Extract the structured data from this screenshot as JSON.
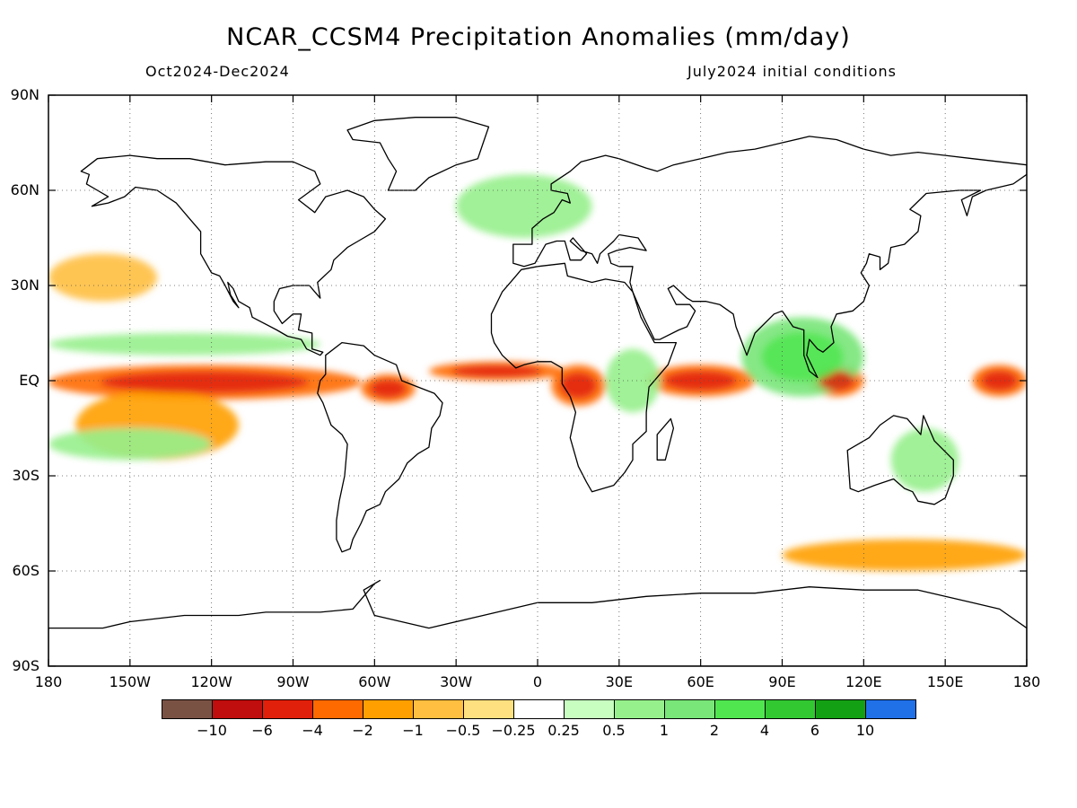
{
  "header": {
    "title": "NCAR_CCSM4 Precipitation Anomalies (mm/day)",
    "period": "Oct2024-Dec2024",
    "init": "July2024 initial conditions"
  },
  "axes": {
    "lat_labels": [
      "90N",
      "60N",
      "30N",
      "EQ",
      "30S",
      "60S",
      "90S"
    ],
    "lon_labels": [
      "180",
      "150W",
      "120W",
      "90W",
      "60W",
      "30W",
      "0",
      "30E",
      "60E",
      "90E",
      "120E",
      "150E",
      "180"
    ]
  },
  "legend": {
    "colors": [
      "#7a5244",
      "#c00d0d",
      "#e0200a",
      "#ff6a00",
      "#ffa000",
      "#ffbf40",
      "#ffe080",
      "#ffffff",
      "#c8ffc0",
      "#96f08c",
      "#78e678",
      "#50e650",
      "#32c832",
      "#14a014",
      "#2070e8"
    ],
    "labels": [
      "−10",
      "−6",
      "−4",
      "−2",
      "−1",
      "−0.5",
      "−0.25",
      "0.25",
      "0.5",
      "1",
      "2",
      "4",
      "6",
      "10"
    ]
  },
  "map_data": {
    "type": "filled-contour",
    "variable": "precipitation anomaly",
    "units": "mm/day",
    "lon_range": [
      -180,
      180
    ],
    "lat_range": [
      -90,
      90
    ],
    "gridlines": true,
    "features": [
      {
        "desc": "equatorial central Pacific",
        "lon": [
          -180,
          -65
        ],
        "lat": [
          -6,
          5
        ],
        "anomaly": -3
      },
      {
        "desc": "southeastern Pacific diagonal band",
        "lon": [
          -170,
          -110
        ],
        "lat": [
          -25,
          -3
        ],
        "anomaly": -1
      },
      {
        "desc": "equatorial western Pacific",
        "lon": [
          160,
          180
        ],
        "lat": [
          -5,
          5
        ],
        "anomaly": -2
      },
      {
        "desc": "northern South America",
        "lon": [
          -65,
          -45
        ],
        "lat": [
          -7,
          2
        ],
        "anomaly": -2
      },
      {
        "desc": "equatorial Atlantic",
        "lon": [
          -40,
          10
        ],
        "lat": [
          0,
          6
        ],
        "anomaly": -2
      },
      {
        "desc": "central equatorial Africa",
        "lon": [
          5,
          25
        ],
        "lat": [
          -8,
          5
        ],
        "anomaly": -2
      },
      {
        "desc": "western Indian Ocean",
        "lon": [
          40,
          80
        ],
        "lat": [
          -5,
          5
        ],
        "anomaly": -2
      },
      {
        "desc": "Indonesia / Maritime Continent",
        "lon": [
          100,
          120
        ],
        "lat": [
          -5,
          5
        ],
        "anomaly": -2
      },
      {
        "desc": "Southern Ocean south of Australia",
        "lon": [
          90,
          180
        ],
        "lat": [
          -60,
          -50
        ],
        "anomaly": -1
      },
      {
        "desc": "North Pacific",
        "lon": [
          -180,
          -140
        ],
        "lat": [
          25,
          40
        ],
        "anomaly": -0.5
      },
      {
        "desc": "Bay of Bengal / eastern Indian Ocean",
        "lon": [
          75,
          120
        ],
        "lat": [
          -5,
          20
        ],
        "anomaly": 2
      },
      {
        "desc": "ITCZ north of equatorial Pacific",
        "lon": [
          -180,
          -80
        ],
        "lat": [
          8,
          15
        ],
        "anomaly": 1
      },
      {
        "desc": "South Pacific convergence",
        "lon": [
          -180,
          -120
        ],
        "lat": [
          -25,
          -15
        ],
        "anomaly": 1
      },
      {
        "desc": "East Africa",
        "lon": [
          25,
          45
        ],
        "lat": [
          -10,
          10
        ],
        "anomaly": 1
      },
      {
        "desc": "eastern Australia",
        "lon": [
          130,
          155
        ],
        "lat": [
          -35,
          -15
        ],
        "anomaly": 1
      },
      {
        "desc": "subpolar North Atlantic",
        "lon": [
          -30,
          20
        ],
        "lat": [
          45,
          65
        ],
        "anomaly": 1
      }
    ]
  }
}
